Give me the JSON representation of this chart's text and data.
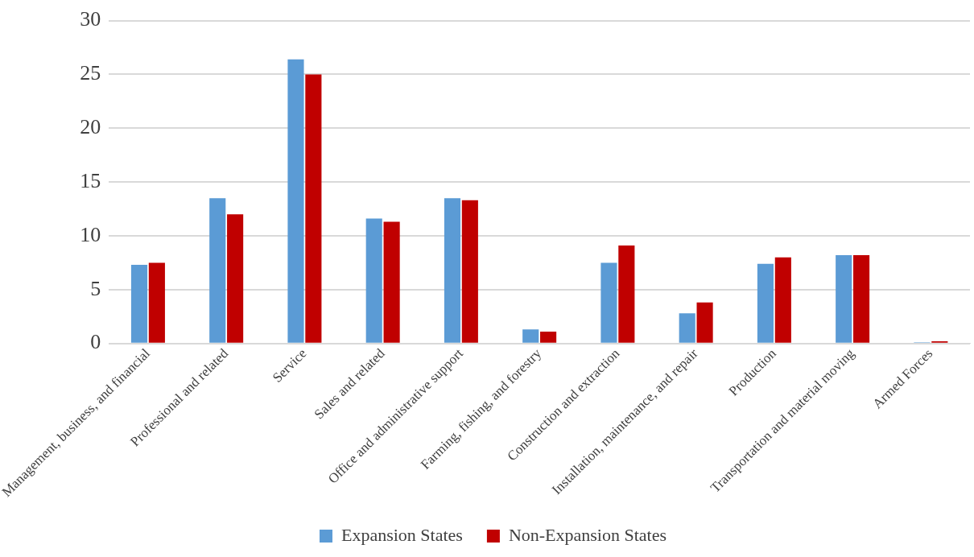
{
  "chart_data": {
    "type": "bar",
    "categories": [
      "Management, business, and financial",
      "Professional and related",
      "Service",
      "Sales and related",
      "Office and administrative support",
      "Farming, fishing, and forestry",
      "Construction and extraction",
      "Installation, maintenance, and repair",
      "Production",
      "Transportation and material moving",
      "Armed Forces"
    ],
    "series": [
      {
        "name": "Expansion States",
        "color": "#5b9bd5",
        "values": [
          7.3,
          13.5,
          26.4,
          11.6,
          13.5,
          1.3,
          7.5,
          2.8,
          7.4,
          8.2,
          0.1
        ]
      },
      {
        "name": "Non-Expansion States",
        "color": "#c00000",
        "values": [
          7.5,
          12.0,
          25.0,
          11.3,
          13.3,
          1.1,
          9.1,
          3.8,
          8.0,
          8.2,
          0.2
        ]
      }
    ],
    "ylim": [
      0,
      30
    ],
    "yticks": [
      0,
      5,
      10,
      15,
      20,
      25,
      30
    ],
    "grid": "y",
    "legend": "bottom"
  }
}
